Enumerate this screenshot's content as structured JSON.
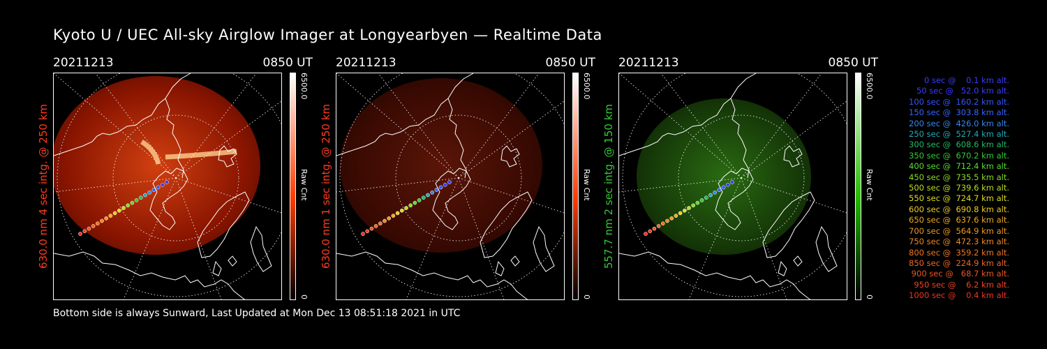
{
  "title": "Kyoto U / UEC All-sky Airglow Imager at Longyearbyen — Realtime Data",
  "panels": [
    {
      "date": "20211213",
      "time": "0850 UT",
      "ylabel": "630.0 nm  4 sec intg. @ 250 km",
      "label_color": "#ff3b1f",
      "cbar_max": "6500.0",
      "cbar_min": "0",
      "cbar_unit": "Raw Cnt",
      "cbar_color": "#ff3b00",
      "glow": "bright-red"
    },
    {
      "date": "20211213",
      "time": "0850 UT",
      "ylabel": "630.0 nm  1 sec intg. @ 250 km",
      "label_color": "#ff3b1f",
      "cbar_max": "6500.0",
      "cbar_min": "0",
      "cbar_unit": "Raw Cnt",
      "cbar_color": "#ff3b00",
      "glow": "dim-red"
    },
    {
      "date": "20211213",
      "time": "0850 UT",
      "ylabel": "557.7 nm  2 sec intg. @ 150 km",
      "label_color": "#33cc33",
      "cbar_max": "6500.0",
      "cbar_min": "0",
      "cbar_unit": "Raw Cnt",
      "cbar_color": "#22bb00",
      "glow": "green"
    }
  ],
  "legend": [
    {
      "text": "   0 sec @    0.1 km alt.",
      "color": "#3b3bff"
    },
    {
      "text": "  50 sec @   52.0 km alt.",
      "color": "#3b3bff"
    },
    {
      "text": " 100 sec @  160.2 km alt.",
      "color": "#3355ff"
    },
    {
      "text": " 150 sec @  303.8 km alt.",
      "color": "#3366ff"
    },
    {
      "text": " 200 sec @  426.0 km alt.",
      "color": "#3388ee"
    },
    {
      "text": " 250 sec @  527.4 km alt.",
      "color": "#22aabb"
    },
    {
      "text": " 300 sec @  608.6 km alt.",
      "color": "#22bb66"
    },
    {
      "text": " 350 sec @  670.2 km alt.",
      "color": "#33cc33"
    },
    {
      "text": " 400 sec @  712.4 km alt.",
      "color": "#55dd33"
    },
    {
      "text": " 450 sec @  735.5 km alt.",
      "color": "#88dd22"
    },
    {
      "text": " 500 sec @  739.6 km alt.",
      "color": "#bbdd22"
    },
    {
      "text": " 550 sec @  724.7 km alt.",
      "color": "#dddd22"
    },
    {
      "text": " 600 sec @  690.8 km alt.",
      "color": "#eecc22"
    },
    {
      "text": " 650 sec @  637.6 km alt.",
      "color": "#eeaa22"
    },
    {
      "text": " 700 sec @  564.9 km alt.",
      "color": "#ee9922"
    },
    {
      "text": " 750 sec @  472.3 km alt.",
      "color": "#ee8822"
    },
    {
      "text": " 800 sec @  359.2 km alt.",
      "color": "#ee7722"
    },
    {
      "text": " 850 sec @  224.9 km alt.",
      "color": "#ee6622"
    },
    {
      "text": " 900 sec @   68.7 km alt.",
      "color": "#ee5522"
    },
    {
      "text": " 950 sec @    6.2 km alt.",
      "color": "#ee4422"
    },
    {
      "text": "1000 sec @    0.4 km alt.",
      "color": "#ee3322"
    }
  ],
  "footer": "Bottom side is always Sunward, Last Updated at Mon Dec 13 08:51:18 2021 in UTC"
}
